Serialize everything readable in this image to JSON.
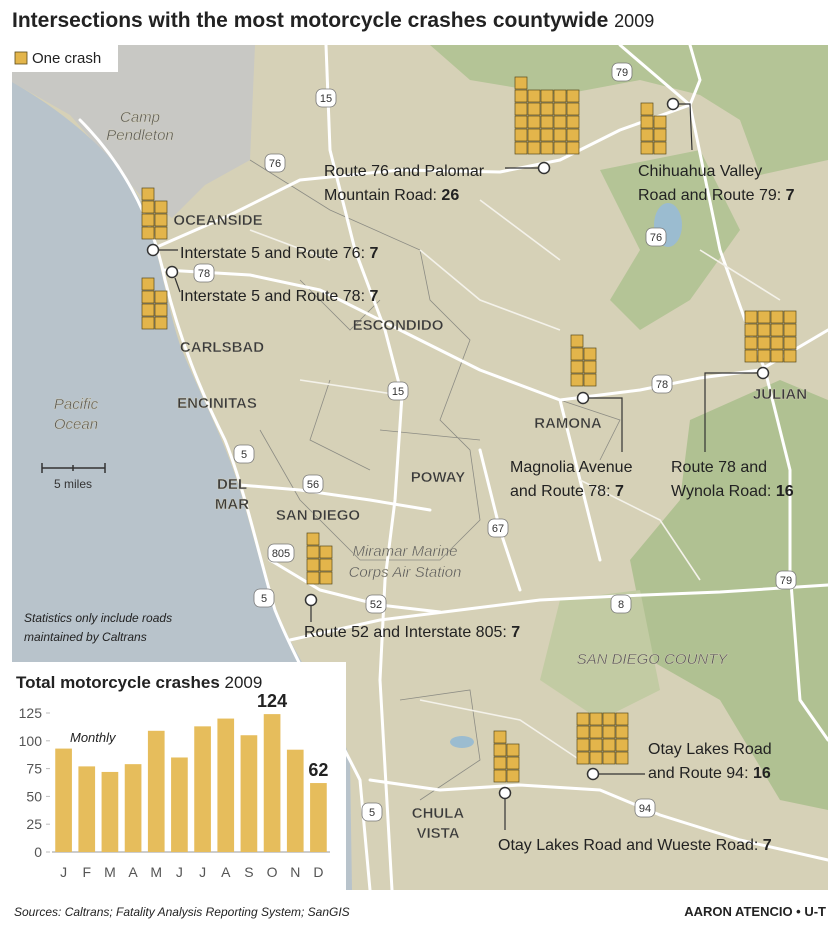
{
  "title": "Intersections with the most motorcycle crashes countywide",
  "title_year": "2009",
  "legend": "One crash",
  "places": [
    "Camp",
    "Pendleton",
    "OCEANSIDE",
    "CARLSBAD",
    "ENCINITAS",
    "Pacific",
    "Ocean",
    "ESCONDIDO",
    "POWAY",
    "DEL",
    "MAR",
    "SAN DIEGO",
    "Miramar Marine",
    "Corps Air Station",
    "RAMONA",
    "JULIAN",
    "SAN DIEGO COUNTY",
    "CHULA",
    "VISTA"
  ],
  "routes": [
    "79",
    "15",
    "76",
    "78",
    "76",
    "78",
    "15",
    "5",
    "56",
    "67",
    "805",
    "5",
    "52",
    "8",
    "79",
    "94",
    "5"
  ],
  "intersections": [
    {
      "lines": [
        "Route 76 and Palomar",
        "Mountain Road:"
      ],
      "count": 26
    },
    {
      "lines": [
        "Chihuahua Valley",
        "Road and Route 79:"
      ],
      "count": 7
    },
    {
      "lines": [
        "Interstate 5 and Route 76:"
      ],
      "count": 7
    },
    {
      "lines": [
        "Interstate 5 and Route 78:"
      ],
      "count": 7
    },
    {
      "lines": [
        "Magnolia Avenue",
        "and Route 78:"
      ],
      "count": 7
    },
    {
      "lines": [
        "Route 78 and",
        "Wynola Road:"
      ],
      "count": 16
    },
    {
      "lines": [
        "Route 52 and Interstate 805:"
      ],
      "count": 7
    },
    {
      "lines": [
        "Otay Lakes Road",
        "and Route 94:"
      ],
      "count": 16
    },
    {
      "lines": [
        "Otay Lakes Road and Wueste Road:"
      ],
      "count": 7
    }
  ],
  "scale": "5 miles",
  "note": [
    "Statistics only include roads",
    "maintained by Caltrans"
  ],
  "chart_data": {
    "type": "bar",
    "title": "Total motorcycle crashes",
    "subtitle": "2009",
    "annotation": "Monthly",
    "categories": [
      "J",
      "F",
      "M",
      "A",
      "M",
      "J",
      "J",
      "A",
      "S",
      "O",
      "N",
      "D"
    ],
    "values": [
      93,
      77,
      72,
      79,
      109,
      85,
      113,
      120,
      105,
      124,
      92,
      62
    ],
    "value_labels": [
      null,
      null,
      null,
      null,
      null,
      null,
      null,
      null,
      null,
      "124",
      null,
      "62"
    ],
    "color": "#e6bd5c",
    "ylim": [
      0,
      125
    ],
    "yticks": [
      0,
      25,
      50,
      75,
      100,
      125
    ]
  },
  "source": "Sources: Caltrans; Fatality Analysis Reporting System; SanGIS",
  "credit": "AARON ATENCIO • U-T"
}
